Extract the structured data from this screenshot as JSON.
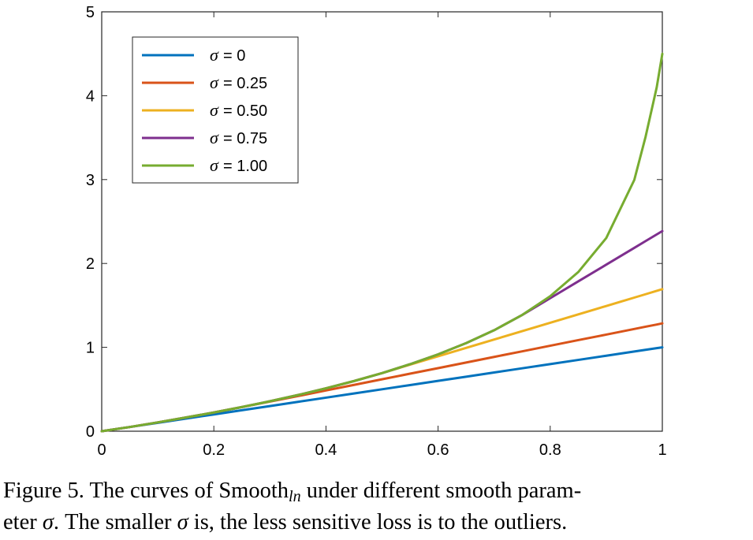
{
  "chart_data": {
    "type": "line",
    "title": "",
    "xlabel": "",
    "ylabel": "",
    "xlim": [
      0,
      1
    ],
    "ylim": [
      0,
      5
    ],
    "xticks": [
      0,
      0.2,
      0.4,
      0.6,
      0.8,
      1
    ],
    "xtick_labels": [
      "0",
      "0.2",
      "0.4",
      "0.6",
      "0.8",
      "1"
    ],
    "yticks": [
      0,
      1,
      2,
      3,
      4,
      5
    ],
    "ytick_labels": [
      "0",
      "1",
      "2",
      "3",
      "4",
      "5"
    ],
    "grid": false,
    "legend_position": "top-left",
    "x": [
      0.0,
      0.05,
      0.1,
      0.15,
      0.2,
      0.25,
      0.3,
      0.35,
      0.4,
      0.45,
      0.5,
      0.55,
      0.6,
      0.65,
      0.7,
      0.75,
      0.8,
      0.85,
      0.9,
      0.95,
      0.97,
      0.99,
      1.0
    ],
    "series": [
      {
        "name": "= 0",
        "symbol": "σ",
        "color": "#0072bd",
        "values": [
          0.0,
          0.05,
          0.1,
          0.15,
          0.2,
          0.25,
          0.3,
          0.35,
          0.4,
          0.45,
          0.5,
          0.55,
          0.6,
          0.65,
          0.7,
          0.75,
          0.8,
          0.85,
          0.9,
          0.95,
          0.97,
          0.99,
          1.0
        ]
      },
      {
        "name": "= 0.25",
        "symbol": "σ",
        "color": "#d95319",
        "values": [
          0.0,
          0.05,
          0.105,
          0.163,
          0.223,
          0.288,
          0.353,
          0.419,
          0.486,
          0.552,
          0.619,
          0.686,
          0.752,
          0.819,
          0.886,
          0.952,
          1.019,
          1.086,
          1.152,
          1.219,
          1.246,
          1.272,
          1.286
        ]
      },
      {
        "name": "= 0.50",
        "symbol": "σ",
        "color": "#edb120",
        "values": [
          0.0,
          0.05,
          0.105,
          0.163,
          0.223,
          0.288,
          0.357,
          0.431,
          0.511,
          0.598,
          0.693,
          0.793,
          0.893,
          0.993,
          1.093,
          1.193,
          1.293,
          1.393,
          1.493,
          1.593,
          1.633,
          1.673,
          1.693
        ]
      },
      {
        "name": "= 0.75",
        "symbol": "σ",
        "color": "#7e2f8e",
        "values": [
          0.0,
          0.05,
          0.105,
          0.163,
          0.223,
          0.288,
          0.357,
          0.431,
          0.511,
          0.598,
          0.693,
          0.799,
          0.916,
          1.05,
          1.204,
          1.386,
          1.586,
          1.786,
          1.986,
          2.186,
          2.266,
          2.346,
          2.386
        ]
      },
      {
        "name": "= 1.00",
        "symbol": "σ",
        "color": "#77ac30",
        "values": [
          0.0,
          0.05,
          0.105,
          0.163,
          0.223,
          0.288,
          0.357,
          0.431,
          0.511,
          0.598,
          0.693,
          0.799,
          0.916,
          1.05,
          1.204,
          1.386,
          1.609,
          1.897,
          2.303,
          2.996,
          3.507,
          4.1,
          4.5
        ]
      }
    ]
  },
  "caption": {
    "line1_prefix": "Figure 5. The curves of ",
    "line1_fn": "Smooth",
    "line1_sub": "ln",
    "line1_suffix": " under different smooth param-",
    "line2_a": "eter ",
    "line2_sigma1": "σ",
    "line2_b": ". The smaller ",
    "line2_sigma2": "σ",
    "line2_c": " is, the less sensitive loss is to the outliers."
  }
}
